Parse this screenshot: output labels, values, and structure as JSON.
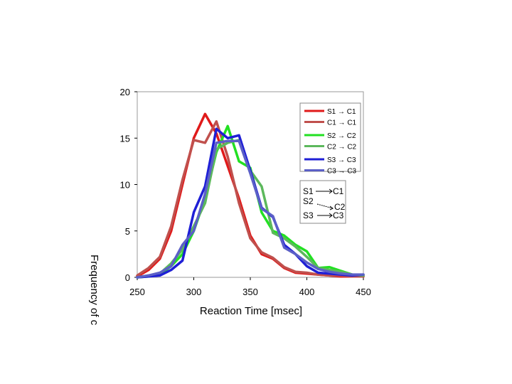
{
  "chart_data": {
    "type": "line",
    "xlabel": "Reaction Time [msec]",
    "ylabel": "Frequency of c",
    "xlim": [
      250,
      450
    ],
    "ylim": [
      0,
      20
    ],
    "xticks": [
      250,
      300,
      350,
      400,
      450
    ],
    "yticks": [
      0,
      5,
      10,
      15,
      20
    ],
    "grid": false,
    "legend_position": "top-right",
    "series": [
      {
        "name": "S1 → C1",
        "color": "#e01a1a",
        "x": [
          250,
          260,
          270,
          280,
          290,
          300,
          310,
          320,
          330,
          340,
          350,
          360,
          370,
          380,
          390,
          400,
          410,
          420,
          430,
          440,
          450
        ],
        "y": [
          0.1,
          0.8,
          2.0,
          5.0,
          10.0,
          15.0,
          17.6,
          15.5,
          12.0,
          8.5,
          4.5,
          2.5,
          2.0,
          1.0,
          0.5,
          0.4,
          0.3,
          0.2,
          0.1,
          0.1,
          0.1
        ]
      },
      {
        "name": "C1 → C1",
        "color": "#c0504d",
        "x": [
          250,
          260,
          270,
          280,
          290,
          300,
          310,
          320,
          330,
          340,
          350,
          360,
          370,
          380,
          390,
          400,
          410,
          420,
          430,
          440,
          450
        ],
        "y": [
          0.2,
          1.0,
          2.2,
          5.5,
          10.5,
          14.8,
          14.5,
          16.8,
          13.0,
          8.0,
          4.2,
          2.7,
          2.1,
          1.1,
          0.6,
          0.5,
          0.3,
          0.2,
          0.2,
          0.1,
          0.1
        ]
      },
      {
        "name": "S2 → C2",
        "color": "#22e022",
        "x": [
          250,
          260,
          270,
          280,
          290,
          300,
          310,
          320,
          330,
          340,
          350,
          360,
          370,
          380,
          390,
          400,
          410,
          420,
          430,
          440,
          450
        ],
        "y": [
          0.0,
          0.1,
          0.3,
          1.2,
          2.5,
          5.0,
          8.5,
          13.5,
          16.3,
          12.5,
          11.8,
          7.0,
          5.0,
          4.5,
          3.5,
          2.8,
          1.0,
          1.1,
          0.7,
          0.3,
          0.2
        ]
      },
      {
        "name": "C2 → C2",
        "color": "#5cb85c",
        "x": [
          250,
          260,
          270,
          280,
          290,
          300,
          310,
          320,
          330,
          340,
          350,
          360,
          370,
          380,
          390,
          400,
          410,
          420,
          430,
          440,
          450
        ],
        "y": [
          0.0,
          0.2,
          0.4,
          1.5,
          3.0,
          5.5,
          8.0,
          13.8,
          14.5,
          14.8,
          11.5,
          9.8,
          4.8,
          4.2,
          3.3,
          2.2,
          1.0,
          0.8,
          0.6,
          0.3,
          0.2
        ]
      },
      {
        "name": "S3 → C3",
        "color": "#1f1fd6",
        "x": [
          250,
          260,
          270,
          280,
          290,
          300,
          310,
          320,
          330,
          340,
          350,
          360,
          370,
          380,
          390,
          400,
          410,
          420,
          430,
          440,
          450
        ],
        "y": [
          0.0,
          0.1,
          0.2,
          0.8,
          1.8,
          7.0,
          9.8,
          16.0,
          15.0,
          15.3,
          11.5,
          7.5,
          6.5,
          3.5,
          2.5,
          1.2,
          0.5,
          0.4,
          0.3,
          0.2,
          0.3
        ]
      },
      {
        "name": "C3 → C3",
        "color": "#5b5fc7",
        "x": [
          250,
          260,
          270,
          280,
          290,
          300,
          310,
          320,
          330,
          340,
          350,
          360,
          370,
          380,
          390,
          400,
          410,
          420,
          430,
          440,
          450
        ],
        "y": [
          0.0,
          0.2,
          0.5,
          1.2,
          3.5,
          5.0,
          9.0,
          14.5,
          14.7,
          14.7,
          11.2,
          7.4,
          6.6,
          3.2,
          2.5,
          1.6,
          0.9,
          0.6,
          0.4,
          0.3,
          0.3
        ]
      }
    ],
    "diagram": {
      "labels": [
        "S1",
        "C1",
        "S2",
        "C2",
        "S3",
        "C3"
      ]
    }
  }
}
